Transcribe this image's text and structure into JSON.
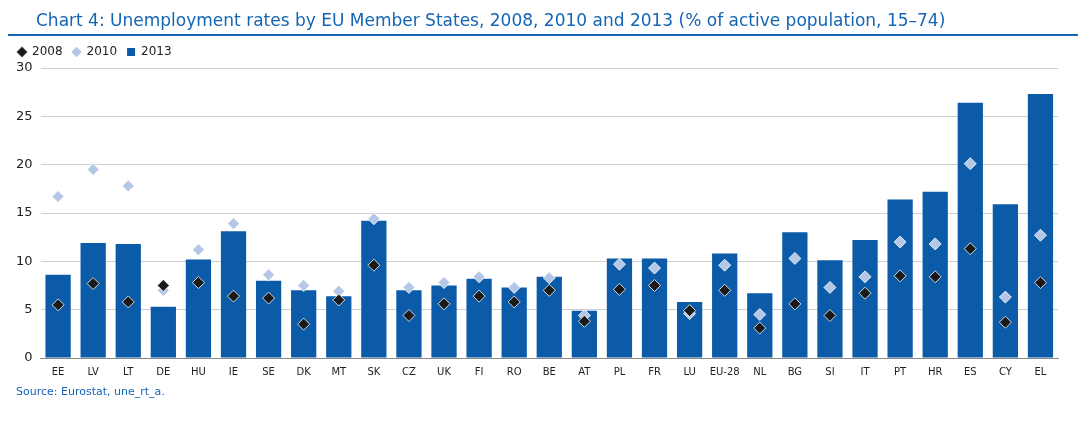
{
  "chart_data": {
    "type": "bar",
    "title": "Chart 4: Unemployment rates by EU Member States, 2008, 2010 and 2013 (% of active population, 15–74)",
    "categories": [
      "EE",
      "LV",
      "LT",
      "DE",
      "HU",
      "IE",
      "SE",
      "DK",
      "MT",
      "SK",
      "CZ",
      "UK",
      "FI",
      "RO",
      "BE",
      "AT",
      "PL",
      "FR",
      "LU",
      "EU-28",
      "NL",
      "BG",
      "SI",
      "IT",
      "PT",
      "HR",
      "ES",
      "CY",
      "EL"
    ],
    "series": [
      {
        "name": "2008",
        "type": "scatter",
        "marker": "diamond",
        "color": "#1a1a1a",
        "values": [
          5.5,
          7.7,
          5.8,
          7.5,
          7.8,
          6.4,
          6.2,
          3.5,
          6.0,
          9.6,
          4.4,
          5.6,
          6.4,
          5.8,
          7.0,
          3.8,
          7.1,
          7.5,
          4.9,
          7.0,
          3.1,
          5.6,
          4.4,
          6.7,
          8.5,
          8.4,
          11.3,
          3.7,
          7.8
        ]
      },
      {
        "name": "2010",
        "type": "scatter",
        "marker": "diamond",
        "color": "#b4c7e7",
        "values": [
          16.7,
          19.5,
          17.8,
          7.0,
          11.2,
          13.9,
          8.6,
          7.5,
          6.9,
          14.4,
          7.3,
          7.8,
          8.4,
          7.3,
          8.3,
          4.4,
          9.7,
          9.3,
          4.6,
          9.6,
          4.5,
          10.3,
          7.3,
          8.4,
          12.0,
          11.8,
          20.1,
          6.3,
          12.7
        ]
      },
      {
        "name": "2013",
        "color": "#0b5ba8",
        "values": [
          8.6,
          11.9,
          11.8,
          5.3,
          10.2,
          13.1,
          8.0,
          7.0,
          6.4,
          14.2,
          7.0,
          7.5,
          8.2,
          7.3,
          8.4,
          4.9,
          10.3,
          10.3,
          5.8,
          10.8,
          6.7,
          13.0,
          10.1,
          12.2,
          16.4,
          17.2,
          26.4,
          15.9,
          27.3
        ]
      }
    ],
    "ylim": [
      0,
      30
    ],
    "yticks": [
      0,
      5,
      10,
      15,
      20,
      25,
      30
    ],
    "grid": "y",
    "legend": "top left",
    "annotations": [
      "Source: Eurostat, une_rt_a."
    ]
  }
}
